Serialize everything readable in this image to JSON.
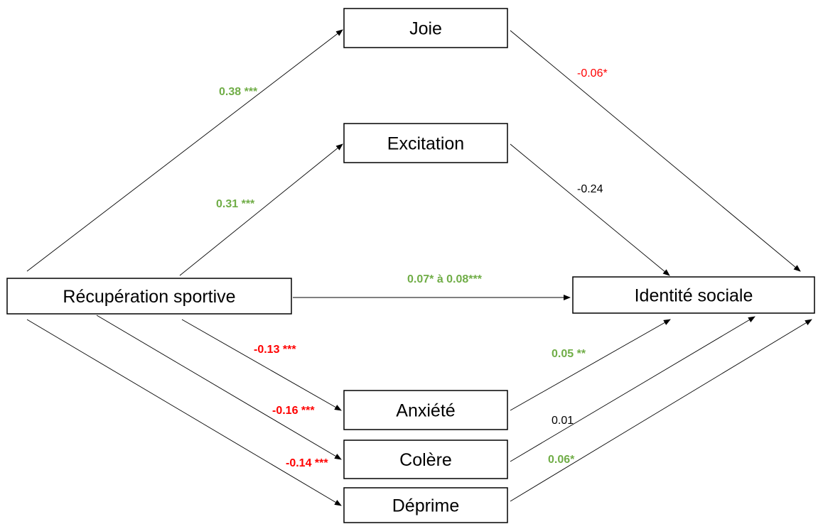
{
  "colors": {
    "positive": "#70ad47",
    "negative": "#ff0000",
    "neutral": "#000000"
  },
  "nodes": [
    {
      "id": "recup",
      "label": "Récupération sportive"
    },
    {
      "id": "joie",
      "label": "Joie"
    },
    {
      "id": "excitation",
      "label": "Excitation"
    },
    {
      "id": "identite",
      "label": "Identité sociale"
    },
    {
      "id": "anxiete",
      "label": "Anxiété"
    },
    {
      "id": "colere",
      "label": "Colère"
    },
    {
      "id": "deprime",
      "label": "Déprime"
    }
  ],
  "edges": [
    {
      "from": "recup",
      "to": "joie",
      "label": "0.38 ***",
      "tone": "positive",
      "bold": true
    },
    {
      "from": "recup",
      "to": "excitation",
      "label": "0.31 ***",
      "tone": "positive",
      "bold": true
    },
    {
      "from": "recup",
      "to": "identite",
      "label": "0.07* à 0.08***",
      "tone": "positive",
      "bold": true
    },
    {
      "from": "recup",
      "to": "anxiete",
      "label": "-0.13 ***",
      "tone": "negative",
      "bold": true
    },
    {
      "from": "recup",
      "to": "colere",
      "label": "-0.16 ***",
      "tone": "negative",
      "bold": true
    },
    {
      "from": "recup",
      "to": "deprime",
      "label": "-0.14 ***",
      "tone": "negative",
      "bold": true
    },
    {
      "from": "joie",
      "to": "identite",
      "label": "-0.06*",
      "tone": "negative",
      "bold": false
    },
    {
      "from": "excitation",
      "to": "identite",
      "label": "-0.24",
      "tone": "neutral",
      "bold": false
    },
    {
      "from": "anxiete",
      "to": "identite",
      "label": "0.05 **",
      "tone": "positive",
      "bold": true
    },
    {
      "from": "colere",
      "to": "identite",
      "label": "0.01",
      "tone": "neutral",
      "bold": false
    },
    {
      "from": "deprime",
      "to": "identite",
      "label": "0.06*",
      "tone": "positive",
      "bold": true
    }
  ]
}
